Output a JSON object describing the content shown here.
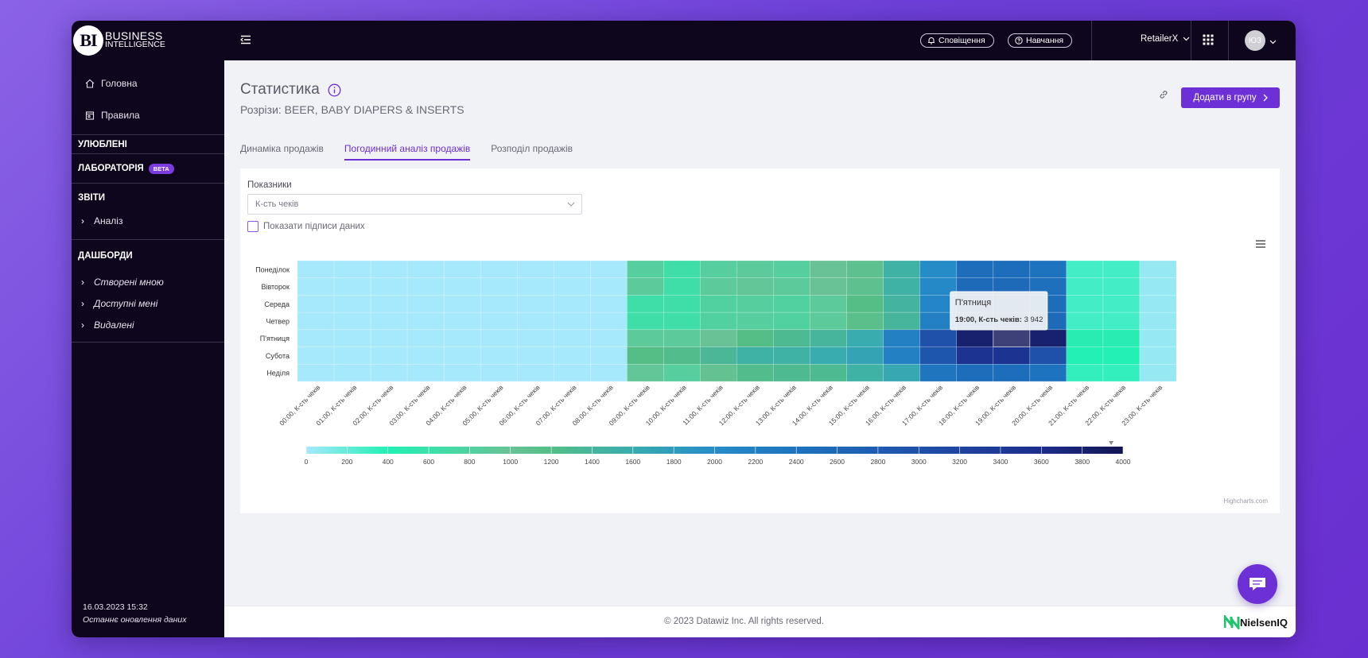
{
  "brand": {
    "logo": "BI",
    "line1": "BUSINESS",
    "line2": "INTELLIGENCE"
  },
  "sidebar": {
    "items": [
      {
        "label": "Головна",
        "icon": "home-icon"
      },
      {
        "label": "Правила",
        "icon": "calendar-icon"
      }
    ],
    "favorites": "УЛЮБЛЕНІ",
    "lab": "ЛАБОРАТОРІЯ",
    "lab_badge": "BETA",
    "reports": "ЗВІТИ",
    "reports_items": [
      "Аналіз"
    ],
    "dashboards": "ДАШБОРДИ",
    "dashboard_items": [
      "Створені мною",
      "Доступні мені",
      "Видалені"
    ],
    "updated_time": "16.03.2023 15:32",
    "updated_label": "Останнє оновлення даних"
  },
  "topbar": {
    "notifications": "Сповіщення",
    "learning": "Навчання",
    "retailer": "RetailerX",
    "avatar": "ЮЗ"
  },
  "page": {
    "title": "Статистика",
    "subtitle": "Розрізи: BEER, BABY DIAPERS & INSERTS",
    "add_button": "Додати в групу",
    "tabs": [
      "Динаміка продажів",
      "Погодинний аналіз продажів",
      "Розподіл продажів"
    ],
    "active_tab": 1,
    "metric_label": "Показники",
    "metric_value": "К-сть чеків",
    "show_labels": "Показати підписи даних"
  },
  "chart_data": {
    "type": "heatmap",
    "rows": [
      "Понеділок",
      "Вівторок",
      "Середа",
      "Четвер",
      "П'ятниця",
      "Субота",
      "Неділя"
    ],
    "columns": [
      "00:00, К-сть чеків",
      "01:00, К-сть чеків",
      "02:00, К-сть чеків",
      "03:00, К-сть чеків",
      "04:00, К-сть чеків",
      "05:00, К-сть чеків",
      "06:00, К-сть чеків",
      "07:00, К-сть чеків",
      "08:00, К-сть чеків",
      "09:00, К-сть чеків",
      "10:00, К-сть чеків",
      "11:00, К-сть чеків",
      "12:00, К-сть чеків",
      "13:00, К-сть чеків",
      "14:00, К-сть чеків",
      "15:00, К-сть чеків",
      "16:00, К-сть чеків",
      "17:00, К-сть чеків",
      "18:00, К-сть чеків",
      "19:00, К-сть чеків",
      "20:00, К-сть чеків",
      "21:00, К-сть чеків",
      "22:00, К-сть чеків",
      "23:00, К-сть чеків"
    ],
    "values": [
      [
        0,
        0,
        0,
        0,
        0,
        0,
        0,
        0,
        0,
        850,
        650,
        850,
        900,
        850,
        1000,
        1100,
        1500,
        2000,
        2500,
        2500,
        2400,
        300,
        300,
        50
      ],
      [
        0,
        0,
        0,
        0,
        0,
        0,
        0,
        0,
        0,
        900,
        650,
        900,
        950,
        900,
        1000,
        1100,
        1500,
        2050,
        2550,
        2550,
        2450,
        300,
        300,
        50
      ],
      [
        0,
        0,
        0,
        0,
        0,
        0,
        0,
        0,
        0,
        650,
        650,
        800,
        850,
        800,
        900,
        1200,
        1450,
        2100,
        2600,
        2600,
        2500,
        300,
        300,
        50
      ],
      [
        0,
        0,
        0,
        0,
        0,
        0,
        0,
        0,
        0,
        650,
        650,
        800,
        850,
        800,
        900,
        1150,
        1400,
        2200,
        2650,
        2650,
        2550,
        300,
        300,
        50
      ],
      [
        0,
        0,
        0,
        0,
        0,
        0,
        0,
        0,
        0,
        900,
        900,
        1000,
        1200,
        1300,
        1400,
        1600,
        2200,
        3000,
        3800,
        3942,
        3800,
        450,
        450,
        50
      ],
      [
        0,
        0,
        0,
        0,
        0,
        0,
        0,
        0,
        0,
        1200,
        1250,
        1350,
        1500,
        1500,
        1600,
        1700,
        2200,
        2900,
        3500,
        3500,
        3000,
        400,
        400,
        50
      ],
      [
        0,
        0,
        0,
        0,
        0,
        0,
        0,
        0,
        0,
        950,
        850,
        1050,
        1250,
        1300,
        1300,
        1500,
        1650,
        2350,
        2500,
        2500,
        2400,
        350,
        350,
        50
      ]
    ],
    "color_axis": {
      "min": 0,
      "max": 4000,
      "ticks": [
        0,
        200,
        400,
        600,
        800,
        1000,
        1200,
        1400,
        1600,
        1800,
        2000,
        2200,
        2400,
        2600,
        2800,
        3000,
        3200,
        3400,
        3600,
        3800,
        4000
      ]
    },
    "tooltip": {
      "title": "П'ятниця",
      "label": "19:00, К-сть чеків:",
      "value": "3 942",
      "row": 4,
      "col": 19
    },
    "credits": "Highcharts.com"
  },
  "footer": {
    "copyright": "© 2023 Datawiz Inc. All rights reserved.",
    "partner": "NielsenIQ"
  },
  "colors": {
    "accent": "#6d2fd6",
    "sidebar": "#0d061c"
  }
}
